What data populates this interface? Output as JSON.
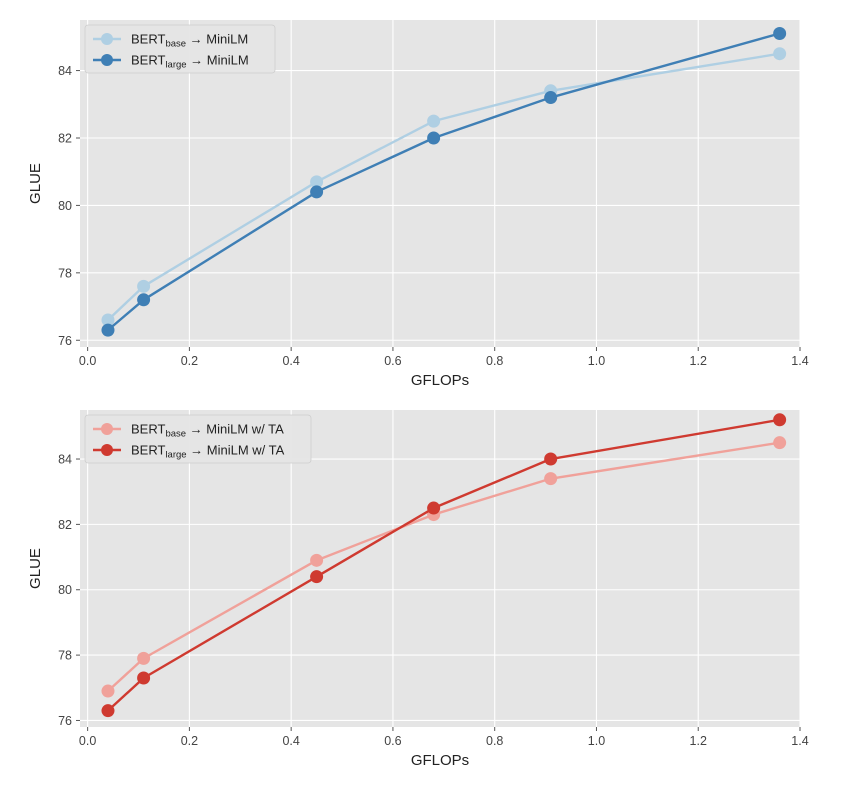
{
  "chart_data": [
    {
      "type": "line",
      "xlabel": "GFLOPs",
      "ylabel": "GLUE",
      "xlim": [
        -0.015,
        1.4
      ],
      "ylim": [
        75.8,
        85.5
      ],
      "xticks": [
        0.0,
        0.2,
        0.4,
        0.6,
        0.8,
        1.0,
        1.2,
        1.4
      ],
      "xtick_labels": [
        "0.0",
        "0.2",
        "0.4",
        "0.6",
        "0.8",
        "1.0",
        "1.2",
        "1.4"
      ],
      "yticks": [
        76,
        78,
        80,
        82,
        84
      ],
      "ytick_labels": [
        "76",
        "78",
        "80",
        "82",
        "84"
      ],
      "grid": true,
      "legend_position": "top-left",
      "series": [
        {
          "name": "BERT",
          "name_sub": "base",
          "name_suffix": " → MiniLM",
          "color": "#afcfe3",
          "x": [
            0.04,
            0.11,
            0.45,
            0.68,
            0.91,
            1.36
          ],
          "y": [
            76.6,
            77.6,
            80.7,
            82.5,
            83.4,
            84.5
          ]
        },
        {
          "name": "BERT",
          "name_sub": "large",
          "name_suffix": " → MiniLM",
          "color": "#3f7fb5",
          "x": [
            0.04,
            0.11,
            0.45,
            0.68,
            0.91,
            1.36
          ],
          "y": [
            76.3,
            77.2,
            80.4,
            82.0,
            83.2,
            85.1
          ]
        }
      ]
    },
    {
      "type": "line",
      "xlabel": "GFLOPs",
      "ylabel": "GLUE",
      "xlim": [
        -0.015,
        1.4
      ],
      "ylim": [
        75.8,
        85.5
      ],
      "xticks": [
        0.0,
        0.2,
        0.4,
        0.6,
        0.8,
        1.0,
        1.2,
        1.4
      ],
      "xtick_labels": [
        "0.0",
        "0.2",
        "0.4",
        "0.6",
        "0.8",
        "1.0",
        "1.2",
        "1.4"
      ],
      "yticks": [
        76,
        78,
        80,
        82,
        84
      ],
      "ytick_labels": [
        "76",
        "78",
        "80",
        "82",
        "84"
      ],
      "grid": true,
      "legend_position": "top-left",
      "series": [
        {
          "name": "BERT",
          "name_sub": "base",
          "name_suffix": " → MiniLM w/ TA",
          "color": "#f0a19a",
          "x": [
            0.04,
            0.11,
            0.45,
            0.68,
            0.91,
            1.36
          ],
          "y": [
            76.9,
            77.9,
            80.9,
            82.3,
            83.4,
            84.5
          ]
        },
        {
          "name": "BERT",
          "name_sub": "large",
          "name_suffix": " → MiniLM w/ TA",
          "color": "#cf3a30",
          "x": [
            0.04,
            0.11,
            0.45,
            0.68,
            0.91,
            1.36
          ],
          "y": [
            76.3,
            77.3,
            80.4,
            82.5,
            84.0,
            85.2
          ]
        }
      ]
    }
  ]
}
